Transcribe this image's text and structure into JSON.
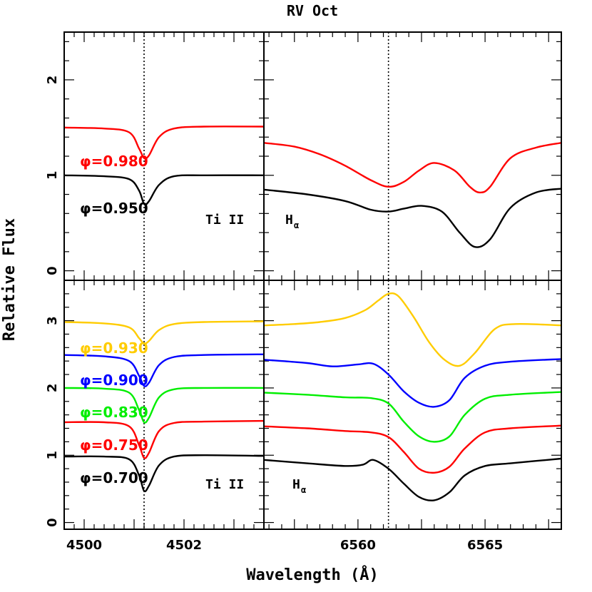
{
  "chart_data": {
    "type": "line",
    "title": "RV Oct",
    "xlabel": "Wavelength (Å)",
    "ylabel": "Relative Flux",
    "colors": {
      "0.700": "#000000",
      "0.750": "#ff0000",
      "0.830": "#00ee00",
      "0.900": "#0000ff",
      "0.930": "#ffcc00",
      "0.950": "#000000",
      "0.980": "#ff0000"
    },
    "panels": [
      {
        "id": "top-left",
        "line_label": "Ti II",
        "xlim": [
          4499.6,
          4503.6
        ],
        "ylim": [
          -0.1,
          2.5
        ],
        "yticks": [
          0,
          1,
          2
        ],
        "xticks": [],
        "reference_x": 4501.2,
        "series": [
          {
            "name": "φ=0.950",
            "phase": "0.950",
            "x": [
              4499.6,
              4500.4,
              4500.9,
              4501.1,
              4501.2,
              4501.3,
              4501.5,
              4501.8,
              4502.4,
              4503.6
            ],
            "y": [
              1.0,
              0.99,
              0.96,
              0.84,
              0.7,
              0.73,
              0.9,
              0.99,
              1.0,
              1.0
            ]
          },
          {
            "name": "φ=0.980",
            "phase": "0.980",
            "x": [
              4499.6,
              4500.4,
              4500.9,
              4501.1,
              4501.2,
              4501.3,
              4501.5,
              4501.8,
              4502.4,
              4503.6
            ],
            "y": [
              1.5,
              1.49,
              1.45,
              1.28,
              1.18,
              1.21,
              1.4,
              1.49,
              1.51,
              1.51
            ]
          }
        ]
      },
      {
        "id": "top-right",
        "line_label": "Hα",
        "xlim": [
          6556.3,
          6568.0
        ],
        "ylim": [
          -0.1,
          2.5
        ],
        "yticks": [],
        "xticks": [],
        "reference_x": 6561.2,
        "series": [
          {
            "name": "φ=0.950",
            "phase": "0.950",
            "x": [
              6556.3,
              6558.0,
              6559.5,
              6560.5,
              6561.2,
              6561.8,
              6562.5,
              6563.3,
              6564.0,
              6564.6,
              6565.2,
              6566.0,
              6567.0,
              6568.0
            ],
            "y": [
              0.85,
              0.8,
              0.73,
              0.64,
              0.62,
              0.65,
              0.68,
              0.62,
              0.4,
              0.25,
              0.33,
              0.66,
              0.82,
              0.86
            ]
          },
          {
            "name": "φ=0.980",
            "phase": "0.980",
            "x": [
              6556.3,
              6557.5,
              6558.5,
              6559.5,
              6560.5,
              6561.2,
              6561.8,
              6562.4,
              6563.0,
              6563.8,
              6564.4,
              6564.8,
              6565.2,
              6566.0,
              6567.0,
              6568.0
            ],
            "y": [
              1.34,
              1.3,
              1.22,
              1.1,
              0.95,
              0.88,
              0.93,
              1.05,
              1.13,
              1.05,
              0.88,
              0.82,
              0.88,
              1.18,
              1.29,
              1.34
            ]
          }
        ]
      },
      {
        "id": "bottom-left",
        "line_label": "Ti II",
        "xlim": [
          4499.6,
          4503.6
        ],
        "ylim": [
          -0.1,
          3.6
        ],
        "yticks": [
          0,
          1,
          2,
          3
        ],
        "xticks": [
          4500,
          4502
        ],
        "reference_x": 4501.2,
        "series": [
          {
            "name": "φ=0.700",
            "phase": "0.700",
            "x": [
              4499.6,
              4500.4,
              4500.9,
              4501.1,
              4501.2,
              4501.3,
              4501.5,
              4501.8,
              4502.4,
              4503.6
            ],
            "y": [
              0.98,
              0.98,
              0.94,
              0.7,
              0.47,
              0.55,
              0.85,
              0.98,
              1.0,
              0.99
            ]
          },
          {
            "name": "φ=0.750",
            "phase": "0.750",
            "x": [
              4499.6,
              4500.4,
              4500.9,
              4501.1,
              4501.2,
              4501.3,
              4501.5,
              4501.8,
              4502.4,
              4503.6
            ],
            "y": [
              1.49,
              1.49,
              1.43,
              1.15,
              0.96,
              1.04,
              1.36,
              1.48,
              1.5,
              1.51
            ]
          },
          {
            "name": "φ=0.830",
            "phase": "0.830",
            "x": [
              4499.6,
              4500.4,
              4500.9,
              4501.1,
              4501.2,
              4501.3,
              4501.5,
              4501.8,
              4502.4,
              4503.6
            ],
            "y": [
              2.0,
              1.99,
              1.93,
              1.67,
              1.49,
              1.56,
              1.86,
              1.98,
              2.0,
              2.0
            ]
          },
          {
            "name": "φ=0.900",
            "phase": "0.900",
            "x": [
              4499.6,
              4500.4,
              4500.9,
              4501.1,
              4501.2,
              4501.3,
              4501.5,
              4501.8,
              4502.4,
              4503.6
            ],
            "y": [
              2.49,
              2.47,
              2.4,
              2.18,
              2.03,
              2.08,
              2.34,
              2.46,
              2.49,
              2.5
            ]
          },
          {
            "name": "φ=0.930",
            "phase": "0.930",
            "x": [
              4499.6,
              4500.4,
              4500.9,
              4501.1,
              4501.2,
              4501.3,
              4501.5,
              4501.8,
              4502.4,
              4503.6
            ],
            "y": [
              2.98,
              2.96,
              2.9,
              2.74,
              2.66,
              2.7,
              2.86,
              2.95,
              2.98,
              2.99
            ]
          }
        ]
      },
      {
        "id": "bottom-right",
        "line_label": "Hα",
        "xlim": [
          6556.3,
          6568.0
        ],
        "ylim": [
          -0.1,
          3.6
        ],
        "yticks": [],
        "xticks": [
          6560,
          6565
        ],
        "reference_x": 6561.2,
        "series": [
          {
            "name": "φ=0.700",
            "phase": "0.700",
            "x": [
              6556.3,
              6558.0,
              6559.5,
              6560.2,
              6560.6,
              6561.2,
              6561.8,
              6562.4,
              6563.0,
              6563.6,
              6564.2,
              6565.0,
              6566.0,
              6568.0
            ],
            "y": [
              0.93,
              0.88,
              0.84,
              0.86,
              0.93,
              0.8,
              0.58,
              0.38,
              0.33,
              0.45,
              0.7,
              0.84,
              0.88,
              0.95
            ]
          },
          {
            "name": "φ=0.750",
            "phase": "0.750",
            "x": [
              6556.3,
              6558.0,
              6559.5,
              6560.5,
              6561.2,
              6561.8,
              6562.4,
              6563.0,
              6563.6,
              6564.2,
              6565.0,
              6566.0,
              6568.0
            ],
            "y": [
              1.43,
              1.4,
              1.36,
              1.34,
              1.27,
              1.05,
              0.8,
              0.74,
              0.83,
              1.1,
              1.34,
              1.4,
              1.44
            ]
          },
          {
            "name": "φ=0.830",
            "phase": "0.830",
            "x": [
              6556.3,
              6558.0,
              6559.5,
              6560.5,
              6561.2,
              6561.8,
              6562.4,
              6563.0,
              6563.6,
              6564.2,
              6565.0,
              6566.0,
              6568.0
            ],
            "y": [
              1.93,
              1.9,
              1.86,
              1.85,
              1.77,
              1.5,
              1.28,
              1.2,
              1.28,
              1.6,
              1.84,
              1.9,
              1.94
            ]
          },
          {
            "name": "φ=0.900",
            "phase": "0.900",
            "x": [
              6556.3,
              6558.0,
              6559.0,
              6560.0,
              6560.6,
              6561.2,
              6561.8,
              6562.4,
              6563.0,
              6563.6,
              6564.2,
              6565.0,
              6566.0,
              6568.0
            ],
            "y": [
              2.42,
              2.37,
              2.32,
              2.35,
              2.36,
              2.2,
              1.95,
              1.78,
              1.72,
              1.82,
              2.15,
              2.33,
              2.39,
              2.43
            ]
          },
          {
            "name": "φ=0.930",
            "phase": "0.930",
            "x": [
              6556.3,
              6557.5,
              6558.5,
              6559.5,
              6560.3,
              6560.8,
              6561.2,
              6561.6,
              6562.2,
              6562.8,
              6563.4,
              6564.0,
              6564.6,
              6565.4,
              6566.2,
              6568.0
            ],
            "y": [
              2.93,
              2.95,
              2.98,
              3.04,
              3.16,
              3.3,
              3.4,
              3.36,
              3.05,
              2.68,
              2.42,
              2.33,
              2.52,
              2.88,
              2.95,
              2.93
            ]
          }
        ]
      }
    ],
    "phase_labels": {
      "top": [
        "φ=0.980",
        "φ=0.950"
      ],
      "bottom": [
        "φ=0.930",
        "φ=0.900",
        "φ=0.830",
        "φ=0.750",
        "φ=0.700"
      ]
    }
  },
  "labels": {
    "title": "RV Oct",
    "xlabel": "Wavelength (Å)",
    "ylabel": "Relative Flux",
    "ti_top": "Ti II",
    "ti_bottom": "Ti II",
    "ha_top": "H",
    "ha_top_sub": "α",
    "ha_bottom": "H",
    "ha_bottom_sub": "α",
    "phi_0980": "φ=0.980",
    "phi_0950": "φ=0.950",
    "phi_0930": "φ=0.930",
    "phi_0900": "φ=0.900",
    "phi_0830": "φ=0.830",
    "phi_0750": "φ=0.750",
    "phi_0700": "φ=0.700"
  }
}
